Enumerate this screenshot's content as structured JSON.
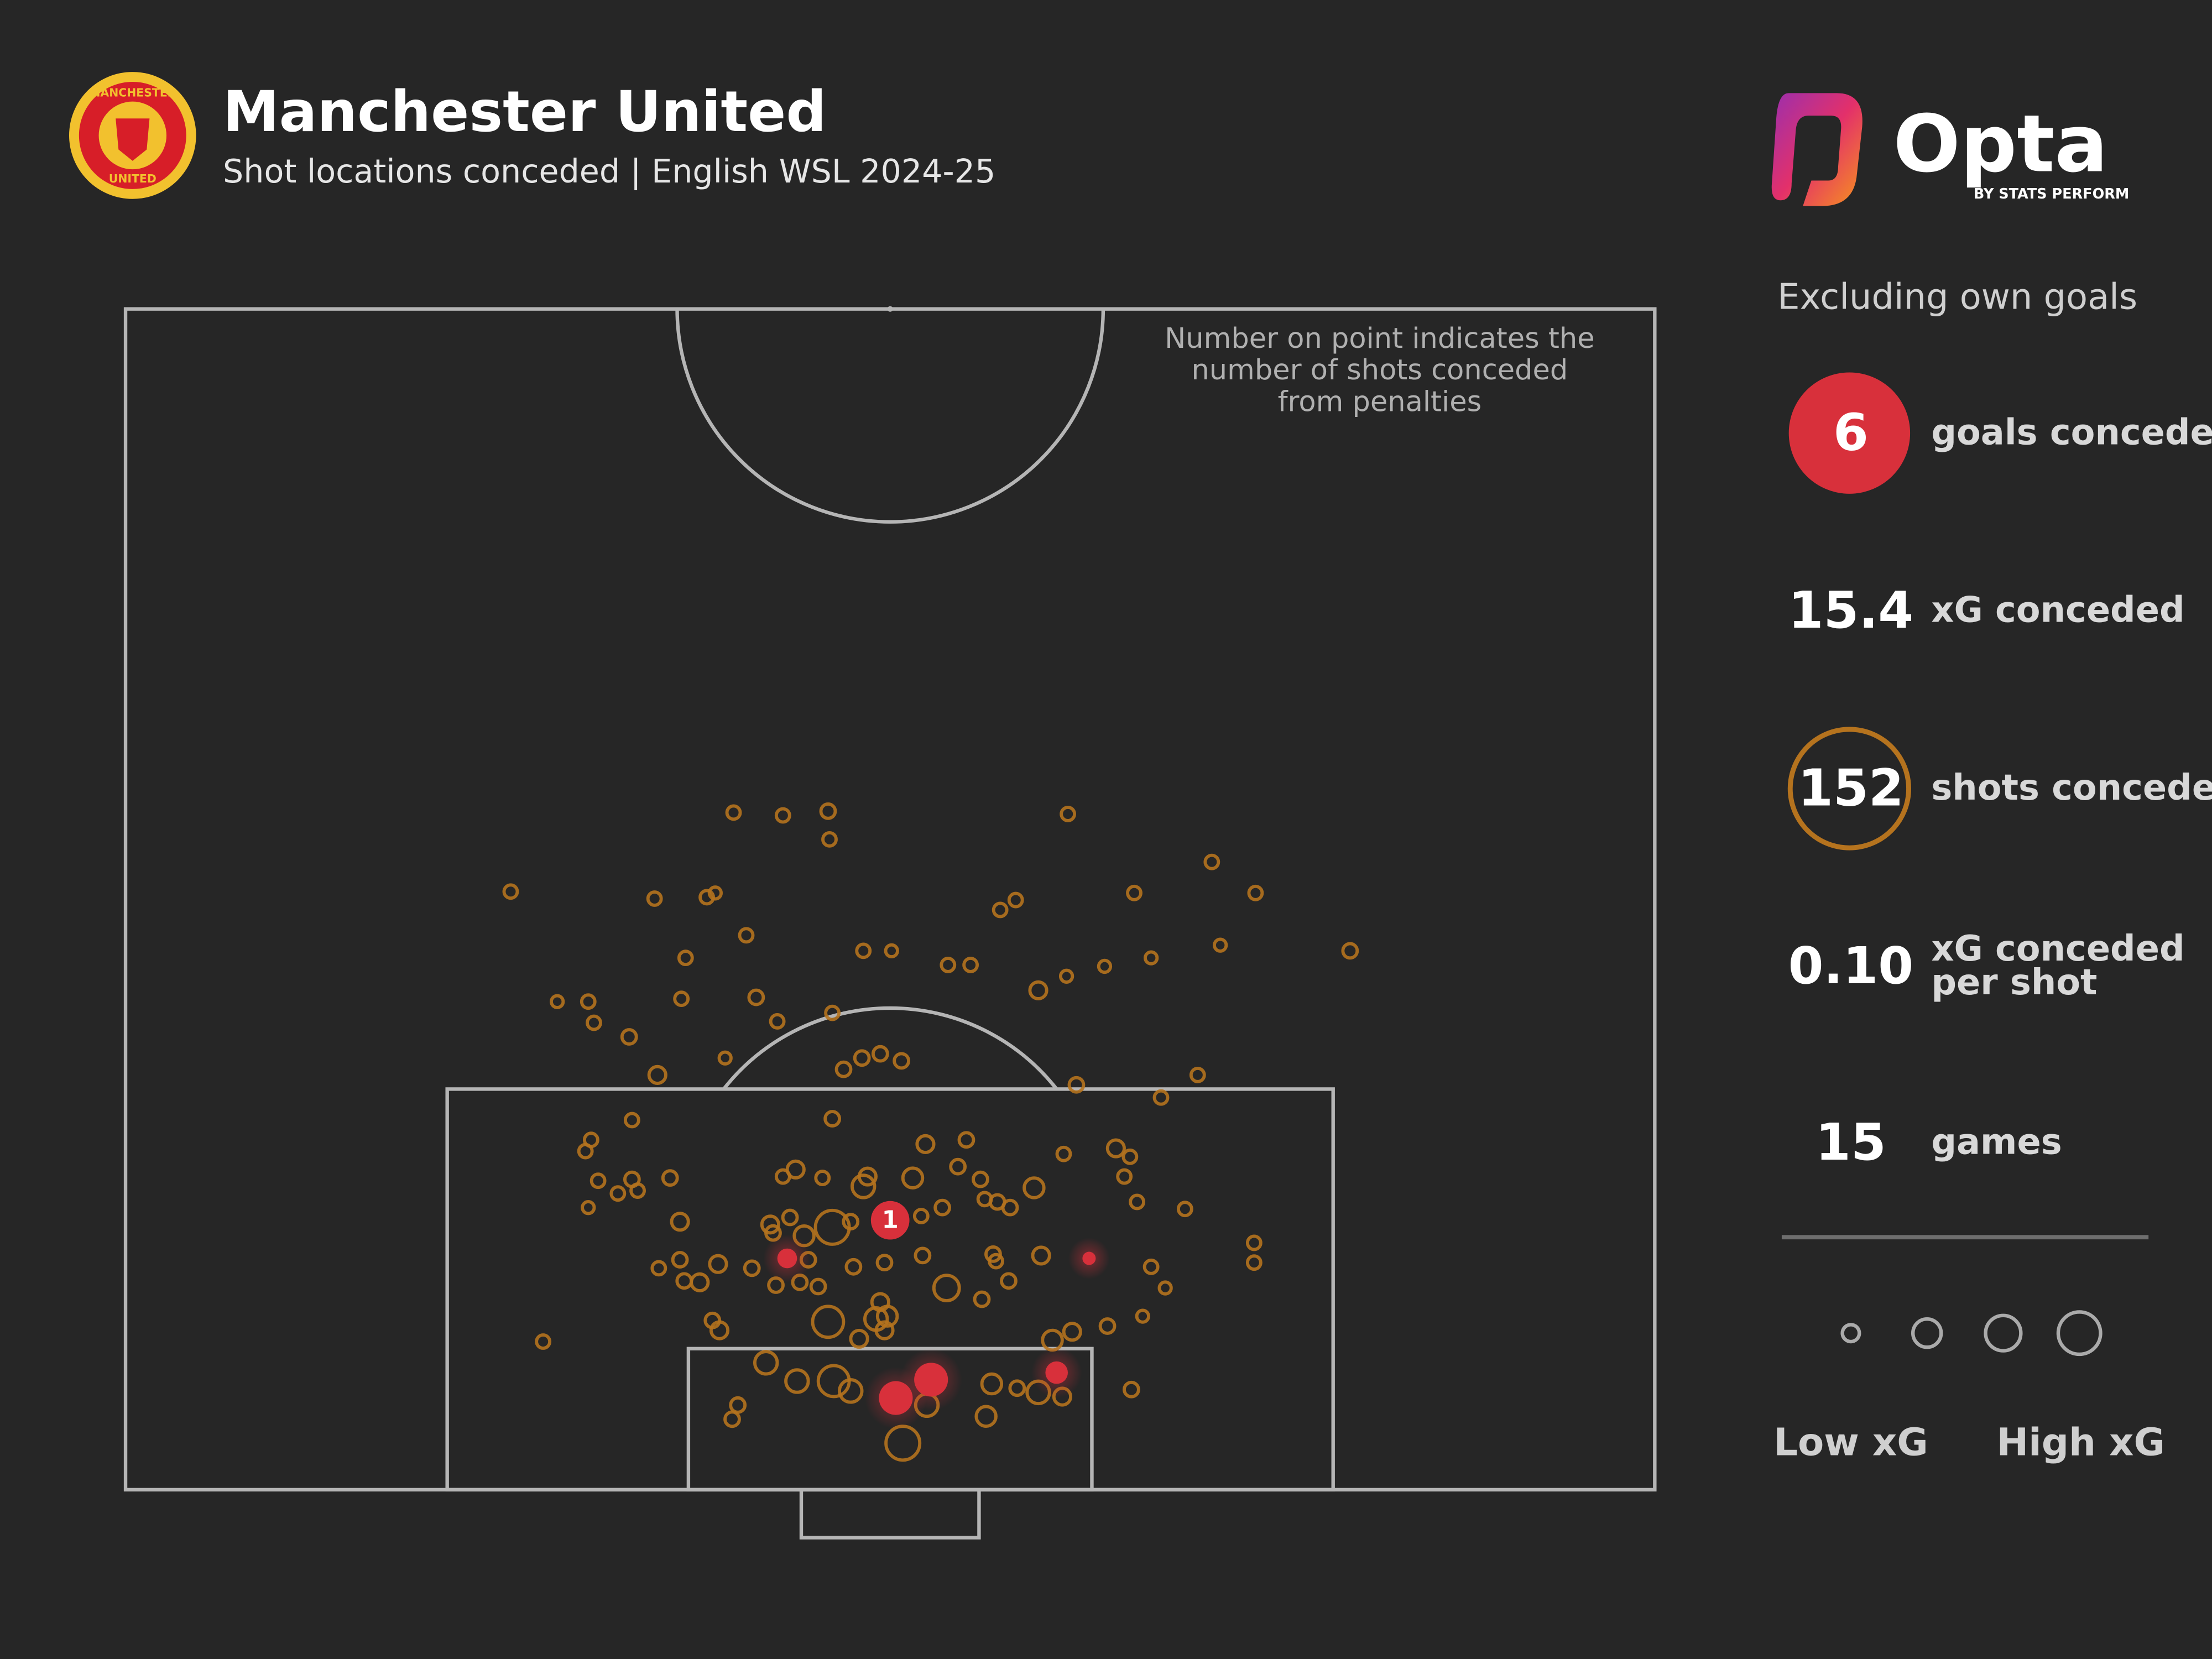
{
  "chart_data": {
    "type": "shotmap",
    "title": "Manchester United",
    "subtitle": "Shot locations conceded | English WSL 2024-25",
    "crest": {
      "top": "MANCHESTER",
      "bottom": "UNITED"
    },
    "brand": {
      "name": "Opta",
      "tagline": "BY STATS PERFORM"
    },
    "annotation": [
      "Number on point indicates the",
      "number of shots conceded",
      "from penalties"
    ],
    "note": "Excluding own goals",
    "xlim": [
      0,
      1084
    ],
    "ylim": [
      0,
      837
    ],
    "shots": {
      "name": "shots",
      "color": "#b5731e",
      "x": [
        431,
        466,
        498,
        499,
        668,
        273,
        375,
        412,
        418,
        770,
        801,
        715,
        631,
        620,
        440,
        523,
        543,
        583,
        599,
        776,
        868,
        727,
        397,
        694,
        667,
        647,
        306,
        328,
        332,
        394,
        447,
        462,
        501,
        357,
        425,
        509,
        522,
        535,
        550,
        377,
        674,
        760,
        734,
        501,
        359,
        330,
        326,
        335,
        349,
        359,
        363,
        386,
        328,
        393,
        466,
        475,
        494,
        526,
        523,
        558,
        567,
        596,
        590,
        606,
        644,
        665,
        702,
        708,
        712,
        717,
        751,
        609,
        618,
        627,
        579,
        564,
        457,
        459,
        481,
        501,
        514,
        471,
        393,
        420,
        378,
        396,
        407,
        444,
        461,
        478,
        491,
        484,
        516,
        538,
        565,
        582,
        607,
        615,
        617,
        626,
        649,
        727,
        737,
        800,
        800,
        296,
        416,
        421,
        498,
        532,
        540,
        535,
        538,
        520,
        671,
        657,
        696,
        721,
        454,
        476,
        502,
        514,
        614,
        632,
        647,
        664,
        713,
        434,
        430,
        568,
        610,
        551
      ],
      "y": [
        480,
        478,
        481,
        461,
        479,
        424,
        419,
        420,
        423,
        445,
        423,
        423,
        418,
        411,
        393,
        382,
        382,
        372,
        372,
        386,
        382,
        377,
        377,
        371,
        364,
        354,
        346,
        346,
        331,
        348,
        349,
        332,
        338,
        321,
        306,
        298,
        306,
        309,
        304,
        294,
        287,
        294,
        278,
        263,
        262,
        248,
        240,
        219,
        210,
        220,
        212,
        221,
        200,
        190,
        222,
        227,
        221,
        222,
        215,
        221,
        245,
        248,
        229,
        220,
        214,
        238,
        242,
        222,
        236,
        204,
        199,
        206,
        204,
        200,
        200,
        194,
        188,
        182,
        180,
        186,
        190,
        193,
        163,
        160,
        157,
        148,
        147,
        157,
        145,
        147,
        144,
        163,
        158,
        161,
        166,
        143,
        135,
        167,
        162,
        148,
        166,
        158,
        143,
        175,
        161,
        105,
        120,
        113,
        119,
        121,
        123,
        133,
        113,
        107,
        112,
        106,
        116,
        123,
        90,
        77,
        77,
        70,
        75,
        72,
        69,
        66,
        71,
        60,
        50,
        60,
        52,
        33
      ],
      "xg": [
        0.02,
        0.02,
        0.03,
        0.02,
        0.02,
        0.02,
        0.02,
        0.02,
        0.01,
        0.02,
        0.02,
        0.02,
        0.02,
        0.02,
        0.02,
        0.02,
        0.01,
        0.02,
        0.02,
        0.01,
        0.03,
        0.01,
        0.02,
        0.01,
        0.01,
        0.06,
        0.01,
        0.02,
        0.02,
        0.02,
        0.03,
        0.02,
        0.02,
        0.03,
        0.01,
        0.03,
        0.03,
        0.03,
        0.03,
        0.06,
        0.03,
        0.02,
        0.02,
        0.03,
        0.02,
        0.02,
        0.02,
        0.02,
        0.02,
        0.03,
        0.02,
        0.03,
        0.01,
        0.06,
        0.02,
        0.06,
        0.02,
        0.06,
        0.17,
        0.11,
        0.06,
        0.03,
        0.03,
        0.03,
        0.11,
        0.02,
        0.06,
        0.02,
        0.02,
        0.02,
        0.02,
        0.02,
        0.03,
        0.03,
        0.03,
        0.02,
        0.06,
        0.03,
        0.11,
        0.56,
        0.03,
        0.03,
        0.03,
        0.06,
        0.02,
        0.03,
        0.06,
        0.03,
        0.03,
        0.03,
        0.03,
        0.03,
        0.03,
        0.03,
        0.03,
        0.25,
        0.03,
        0.03,
        0.02,
        0.03,
        0.06,
        0.02,
        0.01,
        0.02,
        0.02,
        0.02,
        0.03,
        0.06,
        0.44,
        0.17,
        0.11,
        0.06,
        0.06,
        0.06,
        0.06,
        0.11,
        0.03,
        0.01,
        0.17,
        0.17,
        0.44,
        0.17,
        0.11,
        0.03,
        0.17,
        0.06,
        0.03,
        0.03,
        0.03,
        0.17,
        0.11,
        0.56
      ]
    },
    "goals": {
      "name": "goals",
      "color": "#d8303b",
      "x": [
        469,
        683,
        546,
        571,
        660
      ],
      "y": [
        164,
        164,
        65,
        78,
        83
      ],
      "xg": [
        0.11,
        0.02,
        0.56,
        0.56,
        0.17
      ]
    },
    "penalty": {
      "x": 542,
      "y": 191,
      "xg": 0.79,
      "count": 1
    },
    "stats": [
      {
        "value": 6,
        "label": [
          "goals conceded"
        ]
      },
      {
        "value": 15.4,
        "label": [
          "xG conceded"
        ]
      },
      {
        "value": 152,
        "label": [
          "shots conceded"
        ]
      },
      {
        "value": 0.1,
        "value_label": "0.10",
        "label": [
          "xG conceded",
          "per shot"
        ]
      },
      {
        "value": 15,
        "label": [
          "games"
        ]
      }
    ],
    "legend": {
      "low": "Low xG",
      "high": "High xG"
    }
  }
}
